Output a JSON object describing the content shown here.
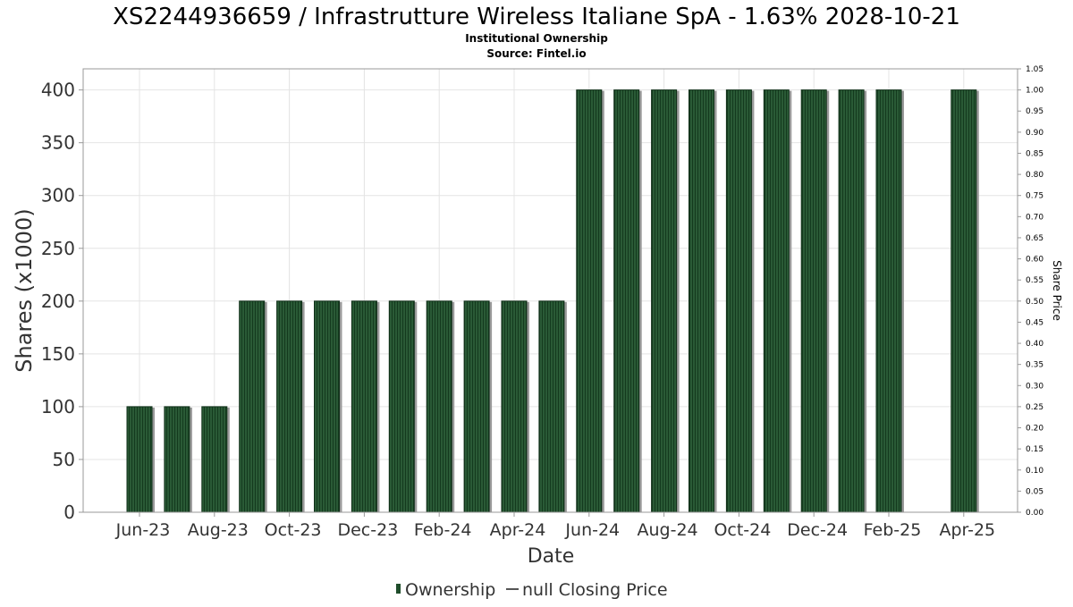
{
  "chart_data": {
    "type": "bar",
    "title": "XS2244936659 / Infrastrutture Wireless Italiane SpA - 1.63% 2028-10-21",
    "subtitle": "Institutional Ownership",
    "source": "Source: Fintel.io",
    "xlabel": "Date",
    "ylabel": "Shares (x1000)",
    "y2label": "Share Price",
    "ylim": [
      0,
      420
    ],
    "y2lim": [
      0,
      1.05
    ],
    "yticks": [
      "0",
      "50",
      "100",
      "150",
      "200",
      "250",
      "300",
      "350",
      "400"
    ],
    "y2ticks": [
      "0.00",
      "0.05",
      "0.10",
      "0.15",
      "0.20",
      "0.25",
      "0.30",
      "0.35",
      "0.40",
      "0.45",
      "0.50",
      "0.55",
      "0.60",
      "0.65",
      "0.70",
      "0.75",
      "0.80",
      "0.85",
      "0.90",
      "0.95",
      "1.00",
      "1.05"
    ],
    "xticks": [
      "Jun-23",
      "Aug-23",
      "Oct-23",
      "Dec-23",
      "Feb-24",
      "Apr-24",
      "Jun-24",
      "Aug-24",
      "Oct-24",
      "Dec-24",
      "Feb-25",
      "Apr-25"
    ],
    "x": [
      "2023-06-01",
      "2023-07-01",
      "2023-08-01",
      "2023-09-01",
      "2023-10-01",
      "2023-11-01",
      "2023-12-01",
      "2024-01-01",
      "2024-02-01",
      "2024-03-01",
      "2024-04-01",
      "2024-05-01",
      "2024-06-01",
      "2024-07-01",
      "2024-08-01",
      "2024-09-01",
      "2024-10-01",
      "2024-11-01",
      "2024-12-01",
      "2025-01-01",
      "2025-02-01",
      "2025-03-01",
      "2025-04-01"
    ],
    "series": [
      {
        "name": "Ownership",
        "color": "#1f4d2b",
        "values": [
          100,
          100,
          100,
          200,
          200,
          200,
          200,
          200,
          200,
          200,
          200,
          200,
          400,
          400,
          400,
          400,
          400,
          400,
          400,
          400,
          400,
          null,
          400
        ]
      }
    ],
    "legend": [
      {
        "label": "Ownership",
        "marker": "bar",
        "color": "#1f4d2b"
      },
      {
        "label": "null Closing Price",
        "marker": "line",
        "color": "#555555"
      }
    ],
    "grid": true,
    "legend_position": "bottom"
  }
}
